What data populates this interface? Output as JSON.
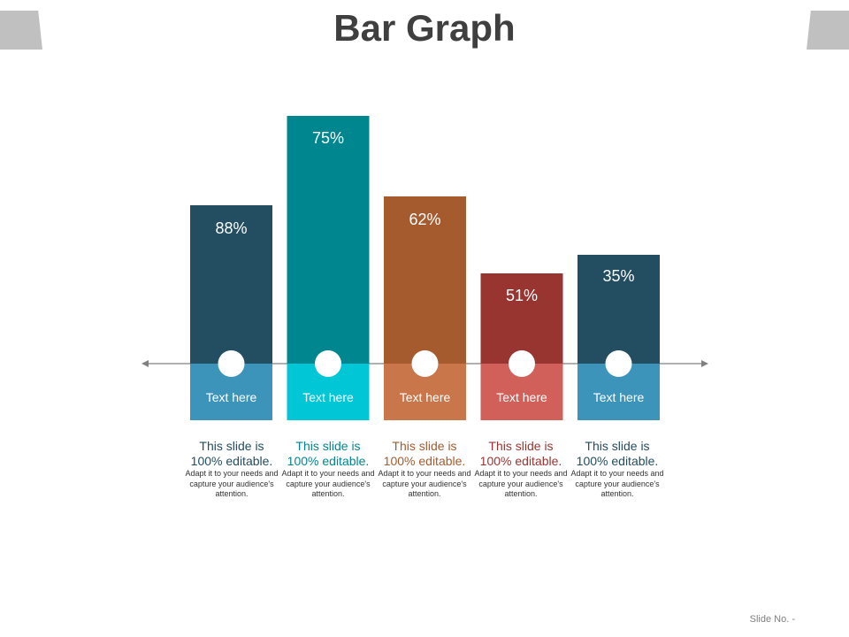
{
  "slide": {
    "title": "Bar Graph",
    "footer": "Slide No. -"
  },
  "chart_data": {
    "type": "bar",
    "title": "Bar Graph",
    "xlabel": "",
    "ylabel": "",
    "categories": [
      "Text here",
      "Text here",
      "Text here",
      "Text here",
      "Text here"
    ],
    "values": [
      88,
      75,
      62,
      51,
      35
    ],
    "value_labels": [
      "88%",
      "75%",
      "62%",
      "51%",
      "35%"
    ],
    "grid": false,
    "legend": "none",
    "colors": {
      "bar": [
        "#234D60",
        "#00868E",
        "#A55B2E",
        "#983530",
        "#234D60"
      ],
      "base": [
        "#3D94BB",
        "#00C6D6",
        "#C8764A",
        "#D2605A",
        "#3D94BB"
      ],
      "axis": "#808080",
      "marker": "#ffffff"
    }
  },
  "descriptions": [
    {
      "main": "This slide is 100% editable.",
      "sub": "Adapt it to your needs and capture your audience's attention.",
      "color": "#234D60"
    },
    {
      "main": "This slide is 100% editable.",
      "sub": "Adapt it to your needs and capture your audience's attention.",
      "color": "#00868E"
    },
    {
      "main": "This slide is 100% editable.",
      "sub": "Adapt it to your needs and capture your audience's attention.",
      "color": "#A55B2E"
    },
    {
      "main": "This slide is 100% editable.",
      "sub": "Adapt it to your needs and capture your audience's attention.",
      "color": "#983530"
    },
    {
      "main": "This slide is 100% editable.",
      "sub": "Adapt it to your needs and capture your audience's attention.",
      "color": "#234D60"
    }
  ]
}
